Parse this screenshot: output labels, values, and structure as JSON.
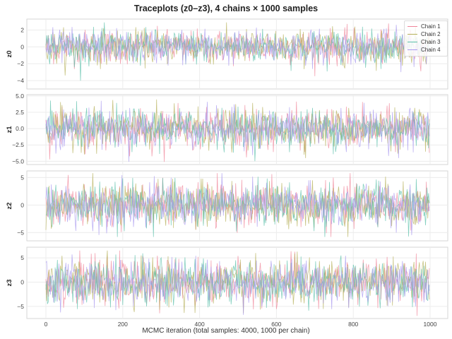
{
  "chart_data": {
    "type": "line",
    "title": "Traceplots (z0–z3), 4 chains × 1000 samples",
    "xlabel": "MCMC iteration (total samples: 4000, 1000 per chain)",
    "x_range": [
      0,
      1000
    ],
    "x_ticks": [
      0,
      200,
      400,
      600,
      800,
      1000
    ],
    "grid": true,
    "legend": {
      "position": "upper right of first panel",
      "entries": [
        "Chain 1",
        "Chain 2",
        "Chain 3",
        "Chain 4"
      ]
    },
    "series_colors": {
      "Chain 1": "#f0859a",
      "Chain 2": "#b5b05a",
      "Chain 3": "#5ec0ab",
      "Chain 4": "#a999ef"
    },
    "panels": [
      {
        "ylabel": "z0",
        "y_ticks": [
          "2",
          "0",
          "−2",
          "−4"
        ],
        "ylim": [
          -5,
          3.3
        ],
        "approx_std": 1.0,
        "min_visible": -4.4,
        "max_visible": 2.9
      },
      {
        "ylabel": "z1",
        "y_ticks": [
          "5.0",
          "2.5",
          "0.0",
          "−2.5",
          "−5.0"
        ],
        "ylim": [
          -5.5,
          5.2
        ],
        "approx_std": 1.5,
        "min_visible": -5.1,
        "max_visible": 4.7
      },
      {
        "ylabel": "z2",
        "y_ticks": [
          "5",
          "0",
          "−5"
        ],
        "ylim": [
          -6.5,
          6.2
        ],
        "approx_std": 2.0,
        "min_visible": -5.8,
        "max_visible": 5.8
      },
      {
        "ylabel": "z3",
        "y_ticks": [
          "5",
          "0",
          "−5"
        ],
        "ylim": [
          -7.5,
          7.2
        ],
        "approx_std": 2.3,
        "min_visible": -7.0,
        "max_visible": 6.5
      }
    ],
    "chains": 4,
    "samples_per_chain": 1000
  },
  "header": {
    "title": "Traceplots (z0–z3), 4 chains × 1000 samples"
  },
  "axes": {
    "xlabel": "MCMC iteration (total samples: 4000, 1000 per chain)",
    "x_ticks": [
      "0",
      "200",
      "400",
      "600",
      "800",
      "1000"
    ]
  },
  "legend": {
    "items": [
      {
        "label": "Chain 1",
        "color": "#f0859a"
      },
      {
        "label": "Chain 2",
        "color": "#b5b05a"
      },
      {
        "label": "Chain 3",
        "color": "#5ec0ab"
      },
      {
        "label": "Chain 4",
        "color": "#a999ef"
      }
    ]
  }
}
